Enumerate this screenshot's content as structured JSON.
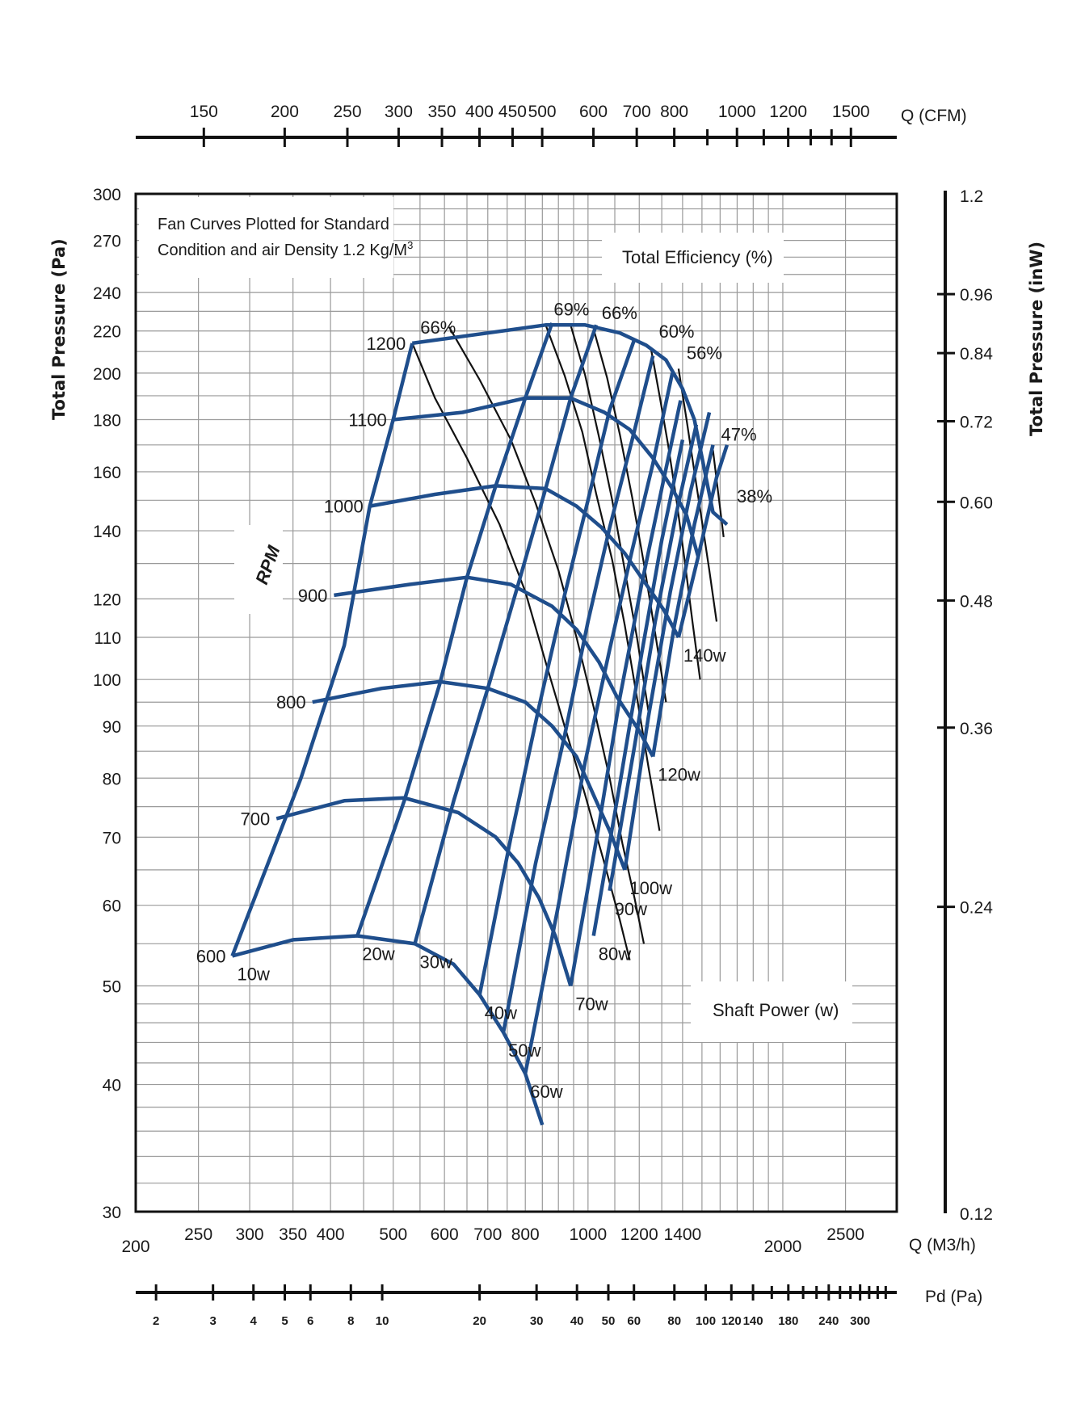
{
  "chart_data": {
    "type": "line",
    "title": "Fan Curves Plotted for Standard Condition and air Density 1.2 Kg/M3",
    "note_line1": "Fan Curves Plotted for Standard",
    "note_line2": "Condition and air Density 1.2 Kg/M",
    "note_sup": "3",
    "efficiency_title": "Total Efficiency (%)",
    "power_title": "Shaft Power (w)",
    "rpm_title": "RPM",
    "colors": {
      "fan_curve": "#1f4e8c",
      "eff_curve": "#111111",
      "grid": "#9a9a9a",
      "frame": "#111111"
    },
    "axes": {
      "left": {
        "label": "Total Pressure (Pa)",
        "ticks": [
          300,
          270,
          240,
          220,
          200,
          180,
          160,
          140,
          120,
          110,
          100,
          90,
          80,
          70,
          60,
          50,
          40,
          30
        ],
        "range": [
          30,
          300
        ],
        "scale": "log"
      },
      "right": {
        "label": "Total Pressure (inW)",
        "ticks": [
          "1.2",
          "0.96",
          "0.84",
          "0.72",
          "0.60",
          "0.48",
          "0.36",
          "0.24",
          "0.12"
        ]
      },
      "bottom": {
        "label": "Q (M3/h)",
        "ticks": [
          200,
          250,
          300,
          350,
          400,
          500,
          600,
          700,
          800,
          1000,
          1200,
          1400,
          2000,
          2500
        ],
        "range": [
          200,
          3000
        ],
        "scale": "log"
      },
      "top": {
        "label": "Q (CFM)",
        "ticks": [
          150,
          200,
          250,
          300,
          350,
          400,
          450,
          500,
          600,
          700,
          800,
          1000,
          1200,
          1500
        ]
      },
      "pd": {
        "label": "Pd (Pa)",
        "ticks": [
          2,
          3,
          4,
          5,
          6,
          8,
          10,
          20,
          30,
          40,
          50,
          60,
          80,
          100,
          120,
          140,
          180,
          240,
          300
        ]
      }
    },
    "rpm_curves": [
      {
        "name": "600",
        "points": [
          [
            282,
            53.5
          ],
          [
            350,
            55.5
          ],
          [
            440,
            56
          ],
          [
            540,
            55
          ],
          [
            620,
            52.5
          ],
          [
            680,
            49
          ],
          [
            740,
            45
          ],
          [
            800,
            41
          ],
          [
            850,
            36.5
          ]
        ]
      },
      {
        "name": "700",
        "points": [
          [
            330,
            73
          ],
          [
            420,
            76
          ],
          [
            520,
            76.5
          ],
          [
            630,
            74
          ],
          [
            720,
            70
          ],
          [
            780,
            66
          ],
          [
            840,
            61
          ],
          [
            890,
            56
          ],
          [
            940,
            50
          ]
        ]
      },
      {
        "name": "800",
        "points": [
          [
            375,
            95
          ],
          [
            480,
            98
          ],
          [
            590,
            99.5
          ],
          [
            700,
            98
          ],
          [
            800,
            95
          ],
          [
            880,
            90
          ],
          [
            960,
            84
          ],
          [
            1020,
            77
          ],
          [
            1080,
            71
          ],
          [
            1140,
            65
          ]
        ]
      },
      {
        "name": "900",
        "points": [
          [
            405,
            121
          ],
          [
            530,
            124
          ],
          [
            650,
            126
          ],
          [
            760,
            124
          ],
          [
            880,
            118
          ],
          [
            960,
            112
          ],
          [
            1040,
            104
          ],
          [
            1110,
            96
          ],
          [
            1200,
            89
          ],
          [
            1260,
            84
          ]
        ]
      },
      {
        "name": "1000",
        "points": [
          [
            460,
            148
          ],
          [
            580,
            152
          ],
          [
            720,
            155
          ],
          [
            860,
            154
          ],
          [
            960,
            148
          ],
          [
            1050,
            141
          ],
          [
            1140,
            133
          ],
          [
            1230,
            124
          ],
          [
            1310,
            117
          ],
          [
            1380,
            110
          ]
        ]
      },
      {
        "name": "1100",
        "points": [
          [
            500,
            180
          ],
          [
            640,
            183
          ],
          [
            800,
            189
          ],
          [
            940,
            189
          ],
          [
            1060,
            183
          ],
          [
            1160,
            176
          ],
          [
            1260,
            165
          ],
          [
            1350,
            154
          ],
          [
            1420,
            145
          ],
          [
            1480,
            132
          ]
        ]
      },
      {
        "name": "1200",
        "points": [
          [
            535,
            214
          ],
          [
            700,
            219
          ],
          [
            860,
            223
          ],
          [
            990,
            223
          ],
          [
            1120,
            219
          ],
          [
            1230,
            213
          ],
          [
            1320,
            206
          ],
          [
            1400,
            193
          ],
          [
            1460,
            180
          ],
          [
            1560,
            146
          ],
          [
            1640,
            142
          ]
        ]
      }
    ],
    "rpm_labels": [
      "600",
      "700",
      "800",
      "900",
      "1000",
      "1100",
      "1200"
    ],
    "efficiency_lines": [
      {
        "name": "66%",
        "points": [
          [
            535,
            214
          ],
          [
            580,
            189
          ],
          [
            650,
            165
          ],
          [
            730,
            142
          ],
          [
            800,
            122
          ],
          [
            860,
            104
          ],
          [
            920,
            90
          ],
          [
            990,
            77
          ],
          [
            1060,
            66
          ],
          [
            1120,
            58
          ],
          [
            1160,
            53
          ]
        ]
      },
      {
        "name": "",
        "points": [
          [
            610,
            222
          ],
          [
            680,
            197
          ],
          [
            760,
            172
          ],
          [
            830,
            149
          ],
          [
            900,
            128
          ],
          [
            960,
            110
          ],
          [
            1020,
            94
          ],
          [
            1080,
            80
          ],
          [
            1130,
            69
          ],
          [
            1180,
            61
          ],
          [
            1220,
            55
          ]
        ]
      },
      {
        "name": "69%",
        "points": [
          [
            860,
            223
          ],
          [
            920,
            199
          ],
          [
            980,
            175
          ],
          [
            1030,
            152
          ],
          [
            1090,
            131
          ],
          [
            1140,
            113
          ],
          [
            1190,
            96
          ],
          [
            1240,
            82
          ],
          [
            1290,
            71
          ]
        ]
      },
      {
        "name": "",
        "points": [
          [
            940,
            223
          ],
          [
            990,
            199
          ],
          [
            1040,
            173
          ],
          [
            1090,
            150
          ],
          [
            1140,
            128
          ],
          [
            1190,
            110
          ],
          [
            1240,
            93
          ]
        ]
      },
      {
        "name": "66%",
        "points": [
          [
            1020,
            221
          ],
          [
            1070,
            198
          ],
          [
            1120,
            174
          ],
          [
            1170,
            151
          ],
          [
            1220,
            130
          ],
          [
            1270,
            111
          ],
          [
            1320,
            95
          ]
        ]
      },
      {
        "name": "60%",
        "points": [
          [
            1250,
            212
          ],
          [
            1290,
            190
          ],
          [
            1330,
            170
          ],
          [
            1370,
            150
          ],
          [
            1410,
            131
          ],
          [
            1450,
            114
          ],
          [
            1490,
            100
          ]
        ]
      },
      {
        "name": "56%",
        "points": [
          [
            1380,
            202
          ],
          [
            1420,
            180
          ],
          [
            1460,
            160
          ],
          [
            1500,
            143
          ],
          [
            1540,
            128
          ],
          [
            1580,
            114
          ]
        ]
      },
      {
        "name": "47%",
        "points": [
          [
            1560,
            168
          ],
          [
            1590,
            152
          ],
          [
            1620,
            138
          ]
        ]
      },
      {
        "name": "38%",
        "points": [
          [
            1650,
            146
          ]
        ]
      }
    ],
    "efficiency_labels": [
      "66%",
      "69%",
      "66%",
      "60%",
      "56%",
      "47%",
      "38%"
    ],
    "power_lines": [
      {
        "name": "10w",
        "points": [
          [
            282,
            53.5
          ],
          [
            360,
            80
          ],
          [
            420,
            108
          ],
          [
            460,
            148
          ],
          [
            500,
            180
          ],
          [
            535,
            214
          ]
        ]
      },
      {
        "name": "20w",
        "points": [
          [
            440,
            56
          ],
          [
            520,
            76
          ],
          [
            590,
            99
          ],
          [
            650,
            126
          ],
          [
            720,
            155
          ],
          [
            800,
            189
          ],
          [
            880,
            224
          ]
        ]
      },
      {
        "name": "30w",
        "points": [
          [
            540,
            55
          ],
          [
            620,
            76
          ],
          [
            700,
            98
          ],
          [
            780,
            124
          ],
          [
            860,
            154
          ],
          [
            940,
            189
          ],
          [
            1030,
            223
          ]
        ]
      },
      {
        "name": "40w",
        "points": [
          [
            680,
            49
          ],
          [
            760,
            70
          ],
          [
            840,
            94
          ],
          [
            920,
            121
          ],
          [
            1000,
            150
          ],
          [
            1080,
            184
          ],
          [
            1180,
            216
          ]
        ]
      },
      {
        "name": "50w",
        "points": [
          [
            740,
            45
          ],
          [
            830,
            66
          ],
          [
            920,
            88
          ],
          [
            1000,
            114
          ],
          [
            1080,
            141
          ],
          [
            1170,
            172
          ],
          [
            1260,
            208
          ]
        ]
      },
      {
        "name": "60w",
        "points": [
          [
            800,
            41
          ],
          [
            900,
            60
          ],
          [
            990,
            83
          ],
          [
            1080,
            107
          ],
          [
            1170,
            134
          ],
          [
            1260,
            163
          ],
          [
            1350,
            200
          ]
        ]
      },
      {
        "name": "70w",
        "points": [
          [
            940,
            50
          ],
          [
            1040,
            72
          ],
          [
            1120,
            96
          ],
          [
            1210,
            124
          ],
          [
            1300,
            154
          ],
          [
            1390,
            188
          ]
        ]
      },
      {
        "name": "80w",
        "points": [
          [
            1020,
            56
          ],
          [
            1120,
            79
          ],
          [
            1210,
            106
          ],
          [
            1300,
            137
          ],
          [
            1400,
            172
          ]
        ]
      },
      {
        "name": "90w",
        "points": [
          [
            1080,
            62
          ],
          [
            1180,
            86
          ],
          [
            1270,
            114
          ],
          [
            1370,
            146
          ],
          [
            1470,
            178
          ]
        ]
      },
      {
        "name": "100w",
        "points": [
          [
            1140,
            65
          ],
          [
            1240,
            92
          ],
          [
            1340,
            122
          ],
          [
            1440,
            153
          ],
          [
            1540,
            183
          ]
        ]
      },
      {
        "name": "120w",
        "points": [
          [
            1260,
            84
          ],
          [
            1360,
            113
          ],
          [
            1460,
            142
          ],
          [
            1560,
            170
          ]
        ]
      },
      {
        "name": "140w",
        "points": [
          [
            1380,
            110
          ],
          [
            1480,
            132
          ],
          [
            1580,
            158
          ],
          [
            1640,
            170
          ]
        ]
      }
    ],
    "power_labels": [
      "10w",
      "20w",
      "30w",
      "40w",
      "50w",
      "60w",
      "70w",
      "80w",
      "90w",
      "100w",
      "120w",
      "140w"
    ]
  }
}
